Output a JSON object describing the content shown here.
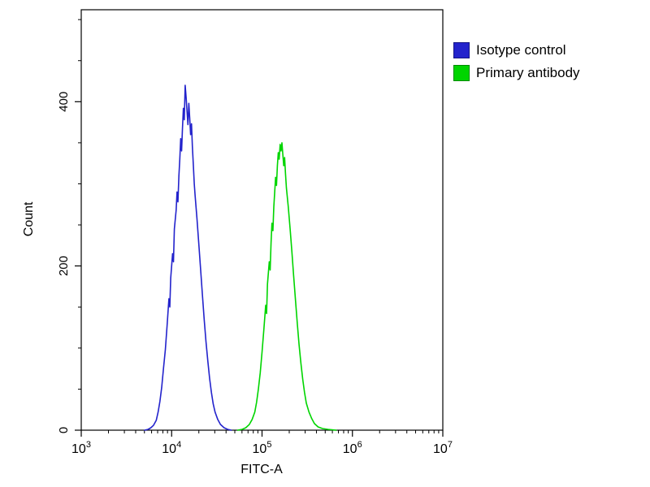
{
  "chart_data": {
    "type": "line",
    "title": "",
    "xlabel": "FITC-A",
    "ylabel": "Count",
    "x_scale": "log10",
    "x_range_exp": [
      3,
      7
    ],
    "x_ticks": [
      {
        "mantissa": "10",
        "exp": "3"
      },
      {
        "mantissa": "10",
        "exp": "4"
      },
      {
        "mantissa": "10",
        "exp": "5"
      },
      {
        "mantissa": "10",
        "exp": "6"
      },
      {
        "mantissa": "10",
        "exp": "7"
      }
    ],
    "ylim": [
      0,
      512
    ],
    "y_ticks": [
      0,
      200,
      400
    ],
    "y_minor_step": 50,
    "axis_color": "#000000",
    "background_color": "#ffffff",
    "grid": false,
    "legend_position": "top-right-outside",
    "series": [
      {
        "name": "Isotype control",
        "color": "#2323cc",
        "peak_x_approx": 14000,
        "peak_count": 420,
        "points": [
          [
            3.7,
            0
          ],
          [
            3.74,
            1
          ],
          [
            3.77,
            3
          ],
          [
            3.8,
            6
          ],
          [
            3.83,
            12
          ],
          [
            3.85,
            22
          ],
          [
            3.87,
            35
          ],
          [
            3.89,
            52
          ],
          [
            3.91,
            75
          ],
          [
            3.93,
            98
          ],
          [
            3.95,
            128
          ],
          [
            3.97,
            160
          ],
          [
            3.98,
            150
          ],
          [
            3.99,
            185
          ],
          [
            4.01,
            215
          ],
          [
            4.02,
            205
          ],
          [
            4.03,
            245
          ],
          [
            4.05,
            268
          ],
          [
            4.06,
            290
          ],
          [
            4.07,
            278
          ],
          [
            4.08,
            310
          ],
          [
            4.09,
            330
          ],
          [
            4.1,
            355
          ],
          [
            4.11,
            340
          ],
          [
            4.12,
            368
          ],
          [
            4.13,
            392
          ],
          [
            4.14,
            378
          ],
          [
            4.15,
            420
          ],
          [
            4.16,
            405
          ],
          [
            4.17,
            388
          ],
          [
            4.18,
            372
          ],
          [
            4.19,
            398
          ],
          [
            4.2,
            380
          ],
          [
            4.21,
            360
          ],
          [
            4.22,
            373
          ],
          [
            4.23,
            345
          ],
          [
            4.24,
            322
          ],
          [
            4.25,
            300
          ],
          [
            4.26,
            285
          ],
          [
            4.28,
            258
          ],
          [
            4.3,
            228
          ],
          [
            4.32,
            196
          ],
          [
            4.34,
            165
          ],
          [
            4.36,
            135
          ],
          [
            4.38,
            108
          ],
          [
            4.4,
            84
          ],
          [
            4.42,
            63
          ],
          [
            4.44,
            46
          ],
          [
            4.46,
            32
          ],
          [
            4.48,
            22
          ],
          [
            4.51,
            13
          ],
          [
            4.54,
            7
          ],
          [
            4.58,
            3
          ],
          [
            4.62,
            1
          ],
          [
            4.66,
            0
          ]
        ]
      },
      {
        "name": "Primary antibody",
        "color": "#00d500",
        "peak_x_approx": 160000,
        "peak_count": 350,
        "points": [
          [
            4.73,
            0
          ],
          [
            4.78,
            1
          ],
          [
            4.82,
            3
          ],
          [
            4.86,
            7
          ],
          [
            4.89,
            13
          ],
          [
            4.92,
            22
          ],
          [
            4.94,
            34
          ],
          [
            4.96,
            50
          ],
          [
            4.98,
            70
          ],
          [
            5.0,
            95
          ],
          [
            5.02,
            122
          ],
          [
            5.04,
            152
          ],
          [
            5.05,
            142
          ],
          [
            5.06,
            178
          ],
          [
            5.08,
            205
          ],
          [
            5.09,
            195
          ],
          [
            5.1,
            228
          ],
          [
            5.11,
            252
          ],
          [
            5.12,
            243
          ],
          [
            5.13,
            272
          ],
          [
            5.14,
            290
          ],
          [
            5.15,
            308
          ],
          [
            5.16,
            298
          ],
          [
            5.17,
            322
          ],
          [
            5.18,
            338
          ],
          [
            5.19,
            330
          ],
          [
            5.2,
            348
          ],
          [
            5.21,
            340
          ],
          [
            5.22,
            350
          ],
          [
            5.23,
            336
          ],
          [
            5.24,
            322
          ],
          [
            5.25,
            332
          ],
          [
            5.26,
            312
          ],
          [
            5.27,
            295
          ],
          [
            5.29,
            272
          ],
          [
            5.31,
            246
          ],
          [
            5.33,
            218
          ],
          [
            5.35,
            188
          ],
          [
            5.37,
            158
          ],
          [
            5.39,
            130
          ],
          [
            5.41,
            104
          ],
          [
            5.43,
            82
          ],
          [
            5.45,
            62
          ],
          [
            5.47,
            46
          ],
          [
            5.49,
            33
          ],
          [
            5.52,
            22
          ],
          [
            5.55,
            14
          ],
          [
            5.58,
            8
          ],
          [
            5.62,
            4
          ],
          [
            5.67,
            2
          ],
          [
            5.73,
            1
          ],
          [
            5.82,
            0
          ]
        ]
      }
    ]
  }
}
